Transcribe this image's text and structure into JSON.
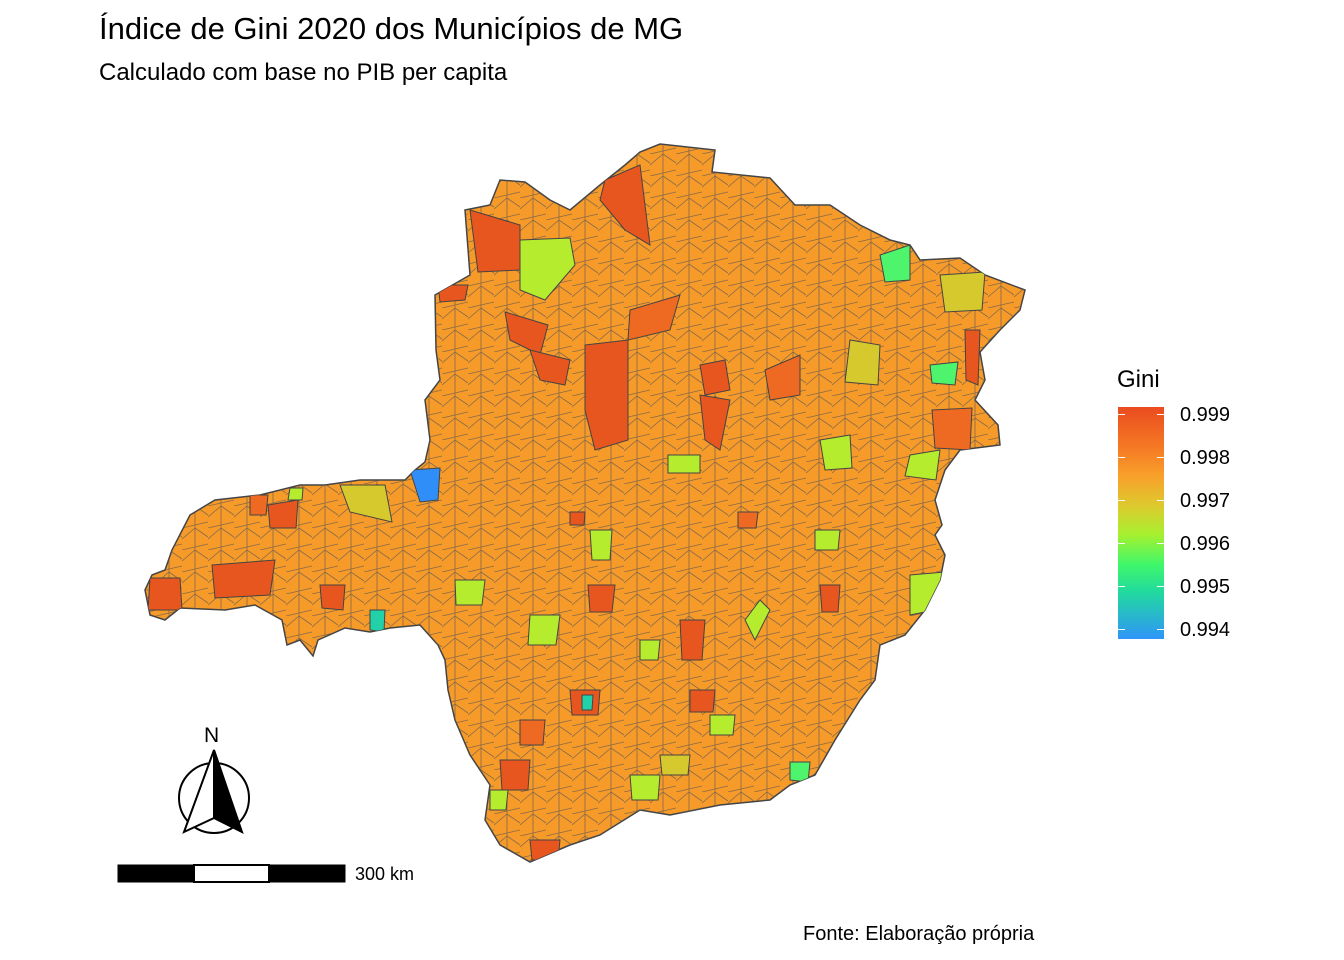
{
  "title": "Índice de Gini 2020 dos Municípios de MG",
  "subtitle": "Calculado com base no PIB per capita",
  "caption": "Fonte: Elaboração própria",
  "legend": {
    "title": "Gini",
    "labels": [
      "0.999",
      "0.998",
      "0.997",
      "0.996",
      "0.995",
      "0.994"
    ]
  },
  "scalebar": {
    "label": "300 km"
  },
  "north_arrow": {
    "label": "N"
  },
  "colors": {
    "high": "#ea4b1f",
    "mid_high": "#f7a02c",
    "mid": "#b8ee2e",
    "low": "#2f95f8",
    "border": "#444444"
  }
}
